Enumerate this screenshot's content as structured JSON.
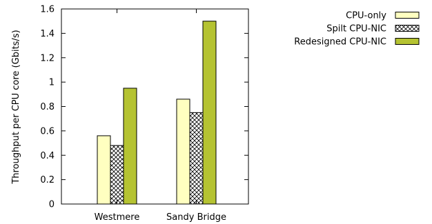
{
  "chart_data": {
    "type": "bar",
    "categories": [
      "Westmere",
      "Sandy Bridge"
    ],
    "series": [
      {
        "name": "CPU-only",
        "values": [
          0.56,
          0.86
        ],
        "fill": "#ffffc0",
        "pattern": "solid"
      },
      {
        "name": "Spilt CPU-NIC",
        "values": [
          0.48,
          0.75
        ],
        "fill": "#ffffff",
        "pattern": "crosshatch"
      },
      {
        "name": "Redesigned CPU-NIC",
        "values": [
          0.95,
          1.5
        ],
        "fill": "#b5c332",
        "pattern": "solid"
      }
    ],
    "title": "",
    "xlabel": "",
    "ylabel": "Throughput per CPU core (Gbits/s)",
    "ylim": [
      0,
      1.6
    ],
    "yticks": [
      "0",
      "0.2",
      "0.4",
      "0.6",
      "0.8",
      "1",
      "1.2",
      "1.4",
      "1.6"
    ],
    "grid": false,
    "legend_position": "top-right"
  }
}
